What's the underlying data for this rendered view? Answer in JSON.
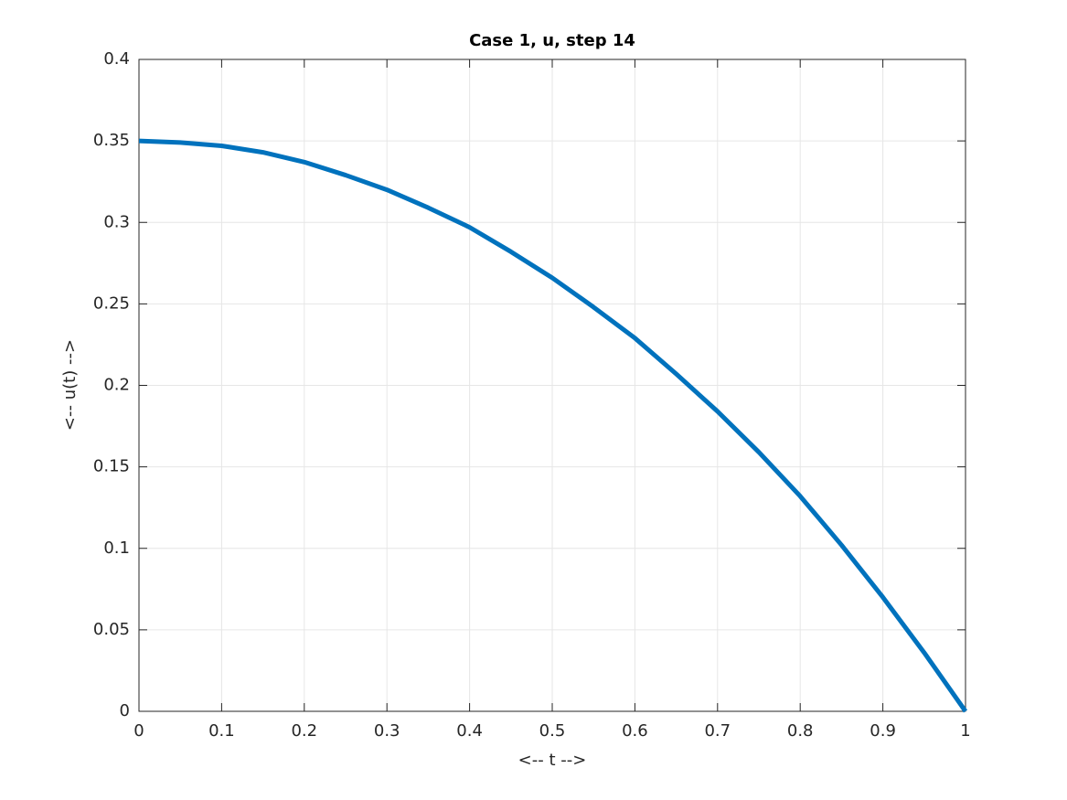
{
  "chart_data": {
    "type": "line",
    "title": "Case 1, u, step 14",
    "x_label": "<-- t -->",
    "y_label": "<-- u(t) -->",
    "x": [
      0,
      0.05,
      0.1,
      0.15,
      0.2,
      0.25,
      0.3,
      0.35,
      0.4,
      0.45,
      0.5,
      0.55,
      0.6,
      0.65,
      0.7,
      0.75,
      0.8,
      0.85,
      0.9,
      0.95,
      1
    ],
    "series": [
      {
        "color": "#0072bd",
        "values": [
          0.35,
          0.349,
          0.347,
          0.343,
          0.337,
          0.329,
          0.32,
          0.309,
          0.297,
          0.282,
          0.266,
          0.248,
          0.229,
          0.207,
          0.184,
          0.159,
          0.132,
          0.102,
          0.07,
          0.036,
          0
        ]
      }
    ],
    "xlim": [
      0,
      1
    ],
    "xticks": [
      0,
      0.1,
      0.2,
      0.3,
      0.4,
      0.5,
      0.6,
      0.7,
      0.8,
      0.9,
      1
    ],
    "ylim": [
      0,
      0.4
    ],
    "yticks": [
      0,
      0.05,
      0.1,
      0.15,
      0.2,
      0.25,
      0.3,
      0.35,
      0.4
    ],
    "grid": true
  }
}
